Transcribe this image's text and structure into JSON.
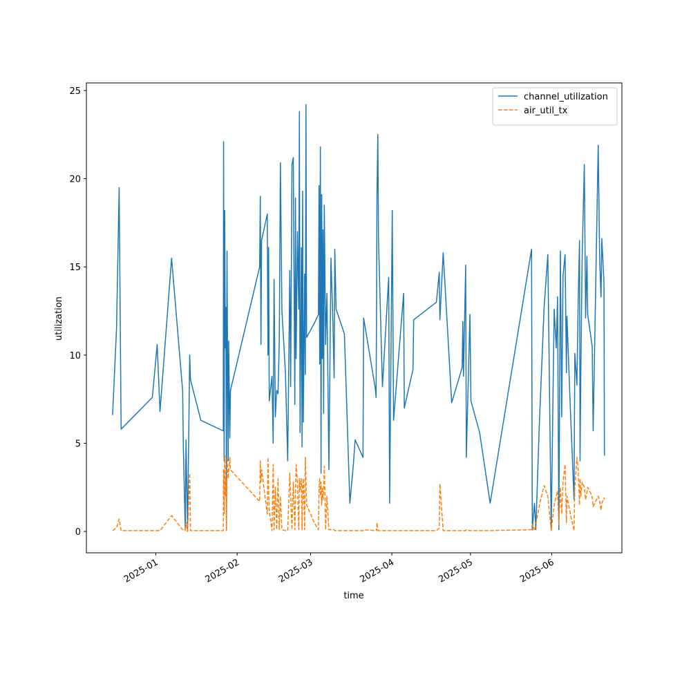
{
  "chart_data": {
    "type": "line",
    "xlabel": "time",
    "ylabel": "utilization",
    "legend": "upper right",
    "xlim": [
      "2024-12-05T12:00",
      "2025-06-27T18:00"
    ],
    "xticks": [
      {
        "value": "2025-01-01T00:00",
        "label": "2025-01"
      },
      {
        "value": "2025-02-01T00:00",
        "label": "2025-02"
      },
      {
        "value": "2025-03-01T00:00",
        "label": "2025-03"
      },
      {
        "value": "2025-04-01T00:00",
        "label": "2025-04"
      },
      {
        "value": "2025-05-01T00:00",
        "label": "2025-05"
      },
      {
        "value": "2025-06-01T00:00",
        "label": "2025-06"
      }
    ],
    "ylim": [
      -1.21,
      25.43
    ],
    "yticks": [
      0,
      5,
      10,
      15,
      20,
      25
    ],
    "x": [
      "2024-12-15T12:00",
      "2024-12-17T00:00",
      "2024-12-18T00:00",
      "2024-12-18T18:00",
      "2024-12-30T16:00",
      "2025-01-01T12:00",
      "2025-01-02T14:00",
      "2025-01-07T00:00",
      "2025-01-11T05:00",
      "2025-01-11T12:00",
      "2025-01-12T05:00",
      "2025-01-12T12:00",
      "2025-01-13T02:00",
      "2025-01-13T22:00",
      "2025-01-14T05:00",
      "2025-01-18T04:00",
      "2025-01-26T17:00",
      "2025-01-26T20:00",
      "2025-01-27T01:00",
      "2025-01-27T06:00",
      "2025-01-27T12:00",
      "2025-01-27T17:00",
      "2025-01-27T22:00",
      "2025-01-28T03:00",
      "2025-01-28T14:00",
      "2025-01-28T19:00",
      "2025-01-29T05:00",
      "2025-01-29T11:00",
      "2025-02-09T14:00",
      "2025-02-09T20:00",
      "2025-02-10T02:00",
      "2025-02-10T08:00",
      "2025-02-12T12:00",
      "2025-02-12T18:00",
      "2025-02-13T00:00",
      "2025-02-13T06:00",
      "2025-02-14T07:00",
      "2025-02-14T18:00",
      "2025-02-15T02:00",
      "2025-02-15T14:00",
      "2025-02-16T02:00",
      "2025-02-16T14:00",
      "2025-02-17T02:00",
      "2025-02-17T12:00",
      "2025-02-18T02:00",
      "2025-02-19T10:00",
      "2025-02-20T07:00",
      "2025-02-21T02:00",
      "2025-02-21T10:00",
      "2025-02-21T22:00",
      "2025-02-22T10:00",
      "2025-02-23T00:00",
      "2025-02-23T06:00",
      "2025-02-23T12:00",
      "2025-02-24T00:00",
      "2025-02-24T12:00",
      "2025-02-24T18:00",
      "2025-02-25T00:00",
      "2025-02-25T12:00",
      "2025-02-25T18:00",
      "2025-02-26T00:00",
      "2025-02-26T06:00",
      "2025-02-26T18:00",
      "2025-02-27T00:00",
      "2025-02-27T06:00",
      "2025-02-27T12:00",
      "2025-03-02T10:00",
      "2025-03-04T00:00",
      "2025-03-04T06:00",
      "2025-03-04T12:00",
      "2025-03-04T18:00",
      "2025-03-05T00:00",
      "2025-03-05T06:00",
      "2025-03-05T12:00",
      "2025-03-05T18:00",
      "2025-03-06T00:00",
      "2025-03-06T06:00",
      "2025-03-06T18:00",
      "2025-03-07T06:00",
      "2025-03-08T00:00",
      "2025-03-08T19:00",
      "2025-03-09T12:00",
      "2025-03-10T00:00",
      "2025-03-10T06:00",
      "2025-03-10T18:00",
      "2025-03-13T22:00",
      "2025-03-16T00:00",
      "2025-03-17T08:00",
      "2025-03-18T00:00",
      "2025-03-21T00:00",
      "2025-03-21T06:00",
      "2025-03-25T17:00",
      "2025-03-26T00:00",
      "2025-03-26T04:00",
      "2025-03-26T08:00",
      "2025-03-26T16:00",
      "2025-03-26T22:00",
      "2025-03-28T10:00",
      "2025-03-30T19:00",
      "2025-03-31T04:00",
      "2025-04-01T04:00",
      "2025-04-01T16:00",
      "2025-04-05T12:00",
      "2025-04-05T18:00",
      "2025-04-09T02:00",
      "2025-04-09T08:00",
      "2025-04-18T00:00",
      "2025-04-19T02:00",
      "2025-04-19T08:00",
      "2025-04-20T14:00",
      "2025-04-23T20:00",
      "2025-04-27T20:00",
      "2025-04-28T02:00",
      "2025-04-28T08:00",
      "2025-04-29T04:00",
      "2025-04-29T10:00",
      "2025-04-30T19:00",
      "2025-04-30T22:00",
      "2025-05-01T04:00",
      "2025-05-04T12:00",
      "2025-05-08T12:00",
      "2025-05-24T07:00",
      "2025-05-24T14:00",
      "2025-05-25T10:00",
      "2025-05-25T22:00",
      "2025-05-27T07:00",
      "2025-05-29T02:00",
      "2025-05-30T12:00",
      "2025-05-31T19:00",
      "2025-06-01T22:00",
      "2025-06-02T17:00",
      "2025-06-03T05:00",
      "2025-06-03T17:00",
      "2025-06-04T07:00",
      "2025-06-04T19:00",
      "2025-06-05T07:00",
      "2025-06-06T02:00",
      "2025-06-06T14:00",
      "2025-06-06T19:00",
      "2025-06-08T02:00",
      "2025-06-09T12:00",
      "2025-06-09T19:00",
      "2025-06-10T14:00",
      "2025-06-11T02:00",
      "2025-06-11T14:00",
      "2025-06-11T19:00",
      "2025-06-12T02:00",
      "2025-06-12T14:00",
      "2025-06-13T10:00",
      "2025-06-13T22:00",
      "2025-06-14T10:00",
      "2025-06-14T17:00",
      "2025-06-16T10:00",
      "2025-06-16T19:00",
      "2025-06-18T17:00",
      "2025-06-19T07:00",
      "2025-06-19T19:00",
      "2025-06-20T02:00",
      "2025-06-20T22:00",
      "2025-06-21T02:00"
    ],
    "series": [
      {
        "name": "channel_utilization",
        "color": "#1f77b4",
        "linestyle": "solid",
        "values": [
          6.6,
          11.5,
          19.5,
          5.8,
          7.6,
          10.6,
          6.8,
          15.5,
          8.0,
          4.7,
          0.1,
          5.2,
          0.0,
          10.0,
          8.6,
          6.3,
          5.7,
          22.1,
          4.0,
          18.2,
          10.4,
          12.7,
          0.1,
          15.9,
          4.0,
          10.8,
          5.3,
          8.0,
          15.0,
          19.0,
          10.6,
          16.5,
          18.0,
          10.0,
          16.1,
          7.4,
          8.8,
          5.0,
          14.3,
          6.5,
          8.0,
          7.8,
          10.8,
          20.9,
          12.5,
          9.0,
          4.0,
          14.8,
          8.2,
          20.8,
          21.2,
          7.2,
          18.9,
          9.8,
          17.0,
          12.6,
          23.8,
          5.6,
          16.1,
          4.8,
          19.3,
          6.2,
          14.6,
          8.9,
          24.2,
          11.0,
          11.8,
          12.3,
          19.6,
          9.5,
          21.8,
          3.3,
          19.1,
          9.8,
          17.1,
          6.7,
          18.5,
          10.6,
          13.5,
          3.5,
          15.5,
          12.0,
          8.7,
          16.0,
          12.6,
          11.2,
          1.6,
          3.8,
          5.2,
          4.2,
          12.1,
          8.1,
          7.6,
          12.6,
          19.0,
          22.5,
          16.5,
          8.2,
          14.4,
          1.6,
          18.2,
          6.3,
          13.5,
          7.0,
          9.2,
          12.0,
          13.0,
          14.7,
          12.0,
          15.8,
          7.3,
          9.3,
          11.9,
          8.8,
          15.1,
          4.2,
          12.3,
          10.8,
          7.4,
          5.6,
          1.6,
          16.0,
          0.1,
          1.6,
          0.1,
          6.2,
          12.7,
          15.7,
          0.1,
          12.6,
          10.4,
          13.3,
          0.1,
          15.9,
          6.5,
          14.5,
          15.7,
          9.0,
          12.2,
          7.0,
          1.8,
          10.1,
          8.3,
          13.1,
          16.5,
          4.0,
          9.0,
          15.5,
          20.8,
          12.1,
          15.6,
          12.3,
          10.5,
          5.7,
          21.9,
          15.3,
          13.3,
          16.6,
          14.1,
          4.3
        ]
      },
      {
        "name": "air_util_tx",
        "color": "#ff7f0e",
        "linestyle": "dashed",
        "values": [
          0.05,
          0.2,
          0.7,
          0.05,
          0.05,
          0.05,
          0.05,
          0.9,
          0.1,
          0.1,
          0.05,
          0.5,
          0.0,
          3.3,
          0.05,
          0.05,
          0.05,
          3.5,
          1.0,
          4.3,
          2.0,
          3.0,
          0.05,
          4.2,
          3.0,
          3.5,
          4.2,
          3.5,
          1.7,
          4.0,
          2.8,
          3.5,
          1.0,
          4.2,
          2.5,
          1.2,
          0.05,
          3.8,
          0.1,
          2.5,
          0.1,
          3.0,
          0.1,
          2.0,
          0.1,
          0.05,
          0.05,
          3.3,
          2.0,
          0.1,
          2.8,
          0.1,
          2.0,
          3.8,
          2.8,
          0.1,
          3.0,
          2.3,
          3.0,
          0.1,
          2.6,
          3.0,
          0.1,
          4.2,
          3.0,
          1.5,
          0.5,
          0.1,
          2.5,
          3.0,
          2.0,
          2.8,
          1.5,
          2.5,
          1.8,
          2.4,
          3.7,
          0.1,
          2.0,
          0.1,
          0.1,
          0.1,
          0.1,
          0.05,
          0.05,
          0.05,
          0.05,
          0.05,
          0.05,
          0.05,
          0.1,
          0.05,
          0.1,
          0.05,
          0.5,
          0.05,
          0.05,
          0.05,
          0.05,
          0.05,
          0.05,
          0.05,
          0.05,
          0.05,
          0.05,
          0.05,
          0.05,
          0.2,
          2.7,
          0.05,
          0.05,
          0.05,
          0.05,
          0.05,
          0.05,
          0.1,
          0.05,
          0.05,
          0.05,
          0.05,
          0.05,
          0.1,
          0.4,
          0.05,
          0.4,
          1.5,
          2.6,
          2.0,
          0.05,
          1.5,
          2.0,
          2.3,
          0.4,
          2.5,
          1.0,
          2.8,
          3.8,
          0.5,
          2.0,
          1.0,
          0.05,
          2.5,
          4.2,
          3.5,
          1.5,
          3.0,
          2.0,
          2.8,
          2.5,
          1.8,
          2.2,
          2.5,
          2.0,
          1.4,
          2.0,
          1.7,
          1.2,
          1.6,
          1.9,
          1.8
        ]
      }
    ]
  }
}
